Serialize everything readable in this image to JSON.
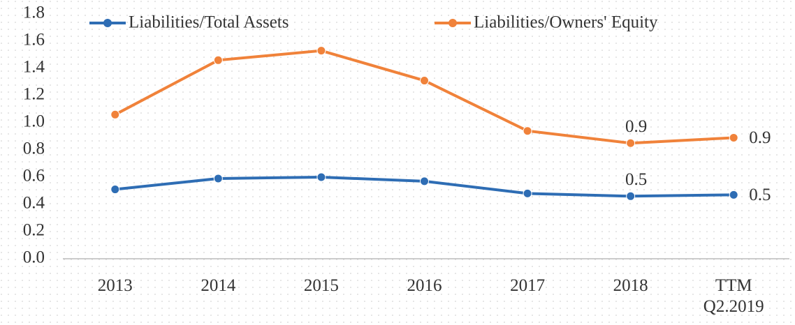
{
  "chart_data": {
    "type": "line",
    "categories": [
      "2013",
      "2014",
      "2015",
      "2016",
      "2017",
      "2018",
      "TTM Q2.2019"
    ],
    "series": [
      {
        "name": "Liabilities/Total Assets",
        "color": "#2e6db4",
        "values": [
          0.51,
          0.59,
          0.6,
          0.57,
          0.48,
          0.46,
          0.47
        ],
        "value_labels": [
          null,
          null,
          null,
          null,
          null,
          "0.5",
          "0.5"
        ]
      },
      {
        "name": "Liabilities/Owners' Equity",
        "color": "#f0823a",
        "values": [
          1.06,
          1.46,
          1.53,
          1.31,
          0.94,
          0.85,
          0.89
        ],
        "value_labels": [
          null,
          null,
          null,
          null,
          null,
          "0.9",
          "0.9"
        ]
      }
    ],
    "ylim": [
      0,
      1.8
    ],
    "yticks": [
      {
        "value": 0,
        "label": "0.0"
      },
      0.2,
      0.4,
      0.6,
      0.8,
      {
        "value": 1,
        "label": "1.0"
      },
      1.2,
      1.4,
      1.6,
      1.8
    ],
    "grid": false,
    "legend": "top"
  }
}
